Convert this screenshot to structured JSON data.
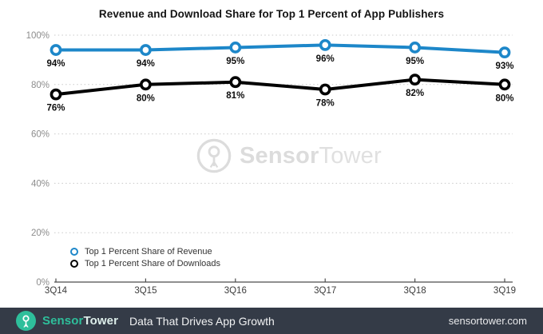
{
  "title": "Revenue and Download Share for Top 1 Percent of App Publishers",
  "chart_data": {
    "type": "line",
    "title": "Revenue and Download Share for Top 1 Percent of App Publishers",
    "categories": [
      "3Q14",
      "3Q15",
      "3Q16",
      "3Q17",
      "3Q18",
      "3Q19"
    ],
    "series": [
      {
        "name": "Top 1 Percent Share of Revenue",
        "color": "#1d87c9",
        "values": [
          94,
          94,
          95,
          96,
          95,
          93
        ]
      },
      {
        "name": "Top 1 Percent Share of Downloads",
        "color": "#000000",
        "values": [
          76,
          80,
          81,
          78,
          82,
          80
        ]
      }
    ],
    "xlabel": "",
    "ylabel": "",
    "ylim": [
      0,
      100
    ],
    "yticks": [
      0,
      20,
      40,
      60,
      80,
      100
    ],
    "ytick_labels": [
      "0%",
      "20%",
      "40%",
      "60%",
      "80%",
      "100%"
    ],
    "data_label_suffix": "%",
    "grid": "horizontal-dotted",
    "legend_position": "bottom-left"
  },
  "watermark": {
    "brand_bold": "Sensor",
    "brand_light": "Tower"
  },
  "footer": {
    "brand_bold": "Sensor",
    "brand_light": "Tower",
    "tagline": "Data That Drives App Growth",
    "domain": "sensortower.com"
  },
  "colors": {
    "accent_blue": "#1d87c9",
    "series_black": "#000000",
    "grid": "#c9c9c9",
    "axis": "#4d4d4d",
    "ytick_text": "#8c8c8c",
    "xtick_text": "#3c3c3c",
    "data_label": "#0d0d0d",
    "watermark": "#dcdcdc",
    "footer_bg": "#343b47",
    "brand_teal": "#2ebf9b"
  }
}
